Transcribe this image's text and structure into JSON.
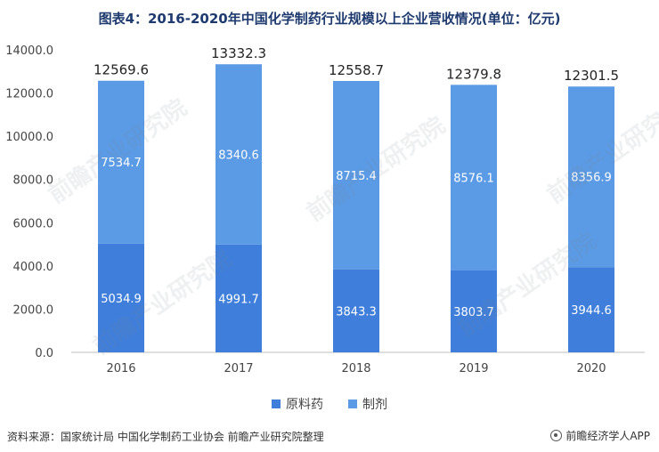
{
  "title": "图表4：2016-2020年中国化学制药行业规模以上企业营收情况(单位：亿元)",
  "chart_data": {
    "type": "bar",
    "stacked": true,
    "categories": [
      "2016",
      "2017",
      "2018",
      "2019",
      "2020"
    ],
    "series": [
      {
        "name": "原料药",
        "values": [
          5034.9,
          4991.7,
          3843.3,
          3803.7,
          3944.6
        ],
        "color": "#3f7fdb"
      },
      {
        "name": "制剂",
        "values": [
          7534.7,
          8340.6,
          8715.4,
          8576.1,
          8356.9
        ],
        "color": "#5b9be6"
      }
    ],
    "totals": [
      12569.6,
      13332.3,
      12558.7,
      12379.8,
      12301.5
    ],
    "ylim": [
      0,
      14000
    ],
    "yticks": [
      0,
      2000,
      4000,
      6000,
      8000,
      10000,
      12000,
      14000
    ],
    "ytick_labels": [
      "0.0",
      "2000.0",
      "4000.0",
      "6000.0",
      "8000.0",
      "10000.0",
      "12000.0",
      "14000.0"
    ],
    "legend_position": "bottom",
    "grid": false
  },
  "source": "资料来源：国家统计局 中国化学制药工业协会 前瞻产业研究院整理",
  "brand": "前瞻经济学人APP",
  "watermark": "前瞻产业研究院"
}
